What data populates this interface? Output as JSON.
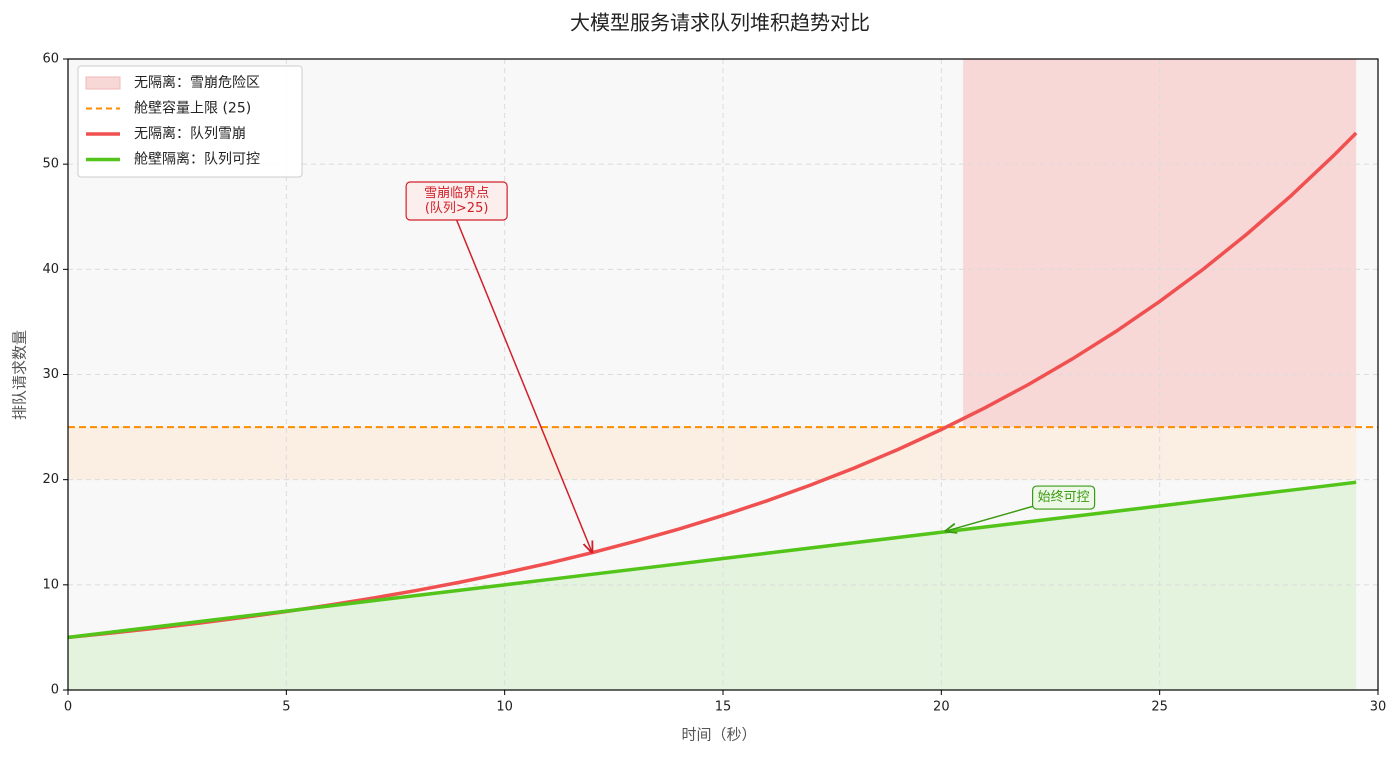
{
  "chart_data": {
    "type": "line",
    "title": "大模型服务请求队列堆积趋势对比",
    "xlabel": "时间（秒）",
    "ylabel": "排队请求数量",
    "xlim": [
      0,
      30
    ],
    "ylim": [
      0,
      60
    ],
    "xticks": [
      0,
      5,
      10,
      15,
      20,
      25,
      30
    ],
    "yticks": [
      0,
      10,
      20,
      30,
      40,
      50,
      60
    ],
    "grid": true,
    "legend": "upper left",
    "x": [
      0,
      1,
      2,
      3,
      4,
      5,
      6,
      7,
      8,
      9,
      10,
      11,
      12,
      13,
      14,
      15,
      16,
      17,
      18,
      19,
      20,
      21,
      22,
      23,
      24,
      25,
      26,
      27,
      28,
      29,
      29.5
    ],
    "series": [
      {
        "name": "无隔离：队列雪崩",
        "color": "#f05050",
        "values": [
          5,
          5.42,
          5.87,
          6.36,
          6.89,
          7.46,
          8.08,
          8.75,
          9.48,
          10.27,
          11.13,
          12.05,
          13.06,
          14.15,
          15.32,
          16.6,
          17.98,
          19.48,
          21.1,
          22.86,
          24.77,
          26.83,
          29.06,
          31.48,
          34.1,
          36.95,
          40.02,
          43.36,
          46.97,
          50.88,
          52.96
        ]
      },
      {
        "name": "舱壁隔离：队列可控",
        "color": "#52c41a",
        "fill": "#e4f3de",
        "values": [
          5,
          5.5,
          6,
          6.5,
          7,
          7.5,
          8,
          8.5,
          9,
          9.5,
          10,
          10.5,
          11,
          11.5,
          12,
          12.5,
          13,
          13.5,
          14,
          14.5,
          15,
          15.5,
          16,
          16.5,
          17,
          17.5,
          18,
          18.5,
          19,
          19.5,
          19.75
        ]
      }
    ],
    "regions": [
      {
        "name": "无隔离：雪崩危险区",
        "color": "#f8d7d7",
        "x": [
          20.5,
          29.5
        ],
        "y": [
          25,
          60
        ]
      },
      {
        "color": "#fbeee3",
        "x": [
          0,
          29.5
        ],
        "y": [
          20,
          25
        ]
      }
    ],
    "hline": {
      "name": "舱壁容量上限 (25)",
      "value": 25,
      "color": "#ff8c00"
    },
    "annotations": [
      {
        "text": [
          "雪崩临界点",
          "(队列>25)"
        ],
        "xy": [
          12,
          13.1
        ],
        "xytext": [
          8.9,
          46.5
        ],
        "color": "#d0202a",
        "box": "#fdeeee"
      },
      {
        "text": [
          "始终可控"
        ],
        "xy": [
          20.1,
          15.1
        ],
        "xytext": [
          22.8,
          18.3
        ],
        "color": "#3a9a10",
        "box": "#eef8e8"
      }
    ]
  }
}
